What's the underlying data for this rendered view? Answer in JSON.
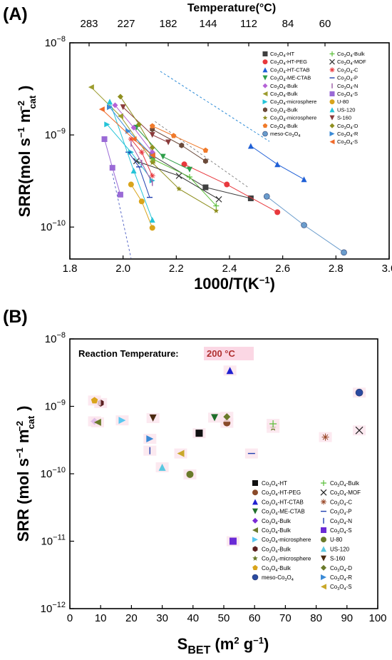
{
  "panelA": {
    "label": "(A)",
    "top_axis_title": "Temperature(°C)",
    "top_ticks": [
      "283",
      "227",
      "182",
      "144",
      "112",
      "84",
      "60"
    ],
    "legend": [
      {
        "label": "Co3O4-HT",
        "color": "#404040",
        "marker": "square"
      },
      {
        "label": "Co3O4-HT-PEG",
        "color": "#e8383d",
        "marker": "circle"
      },
      {
        "label": "Co3O4-HT-CTAB",
        "color": "#1f5fd6",
        "marker": "triangle"
      },
      {
        "label": "Co3O4-ME-CTAB",
        "color": "#2e9e4a",
        "marker": "triangle-down"
      },
      {
        "label": "Co3O4-Bulk",
        "color": "#b562d6",
        "marker": "diamond"
      },
      {
        "label": "Co3O4-Bulk",
        "color": "#9c9c2e",
        "marker": "triangle-left"
      },
      {
        "label": "Co3O4-microsphere",
        "color": "#25c4d8",
        "marker": "triangle-right"
      },
      {
        "label": "Co3O4-Bulk",
        "color": "#6b4a3a",
        "marker": "hexagon"
      },
      {
        "label": "Co3O4-microsphere",
        "color": "#8f8f1f",
        "marker": "star"
      },
      {
        "label": "Co3O4-Bulk",
        "color": "#f07a2a",
        "marker": "pentagon"
      },
      {
        "label": "meso-Co3O4",
        "color": "#6a9ccc",
        "marker": "sphere"
      },
      {
        "label": "Co3O4-Bulk",
        "color": "#5bbf3a",
        "marker": "plus"
      },
      {
        "label": "Co3O4-MOF",
        "color": "#333333",
        "marker": "x"
      },
      {
        "label": "Co3O4-C",
        "color": "#e8383d",
        "marker": "asterisk"
      },
      {
        "label": "Co3O4-P",
        "color": "#1f3fb0",
        "marker": "hline"
      },
      {
        "label": "Co3O4-N",
        "color": "#9a5aa6",
        "marker": "vline"
      },
      {
        "label": "Co3O4-S",
        "color": "#9a6ad6",
        "marker": "square"
      },
      {
        "label": "U-80",
        "color": "#d9a41a",
        "marker": "circle"
      },
      {
        "label": "US-120",
        "color": "#25c4d8",
        "marker": "triangle"
      },
      {
        "label": "S-160",
        "color": "#8a3a3a",
        "marker": "triangle-down"
      },
      {
        "label": "Co3O4-D",
        "color": "#8f8f1f",
        "marker": "diamond"
      },
      {
        "label": "Co3O4-R",
        "color": "#3a8ad6",
        "marker": "triangle-right"
      },
      {
        "label": "Co3O4-S",
        "color": "#f06a2a",
        "marker": "triangle-left"
      }
    ]
  },
  "panelB": {
    "label": "(B)",
    "annotation_prefix": "Reaction Temperature:",
    "annotation_value": "200 °C",
    "legend": [
      {
        "label": "Co3O4-HT",
        "color": "#111111",
        "marker": "square"
      },
      {
        "label": "Co3O4-HT-PEG",
        "color": "#8a4a2a",
        "marker": "circle"
      },
      {
        "label": "Co3O4-HT-CTAB",
        "color": "#2020d0",
        "marker": "triangle"
      },
      {
        "label": "Co3O4-ME-CTAB",
        "color": "#1f6e2a",
        "marker": "triangle-down"
      },
      {
        "label": "Co3O4-Bulk",
        "color": "#7a2ad6",
        "marker": "diamond"
      },
      {
        "label": "Co3O4-Bulk",
        "color": "#6a7a2a",
        "marker": "triangle-left"
      },
      {
        "label": "Co3O4-microsphere",
        "color": "#5ac8f0",
        "marker": "triangle-right"
      },
      {
        "label": "Co3O4-Bulk",
        "color": "#5a1f1f",
        "marker": "hexagon"
      },
      {
        "label": "Co3O4-microsphere",
        "color": "#6a7a2a",
        "marker": "star"
      },
      {
        "label": "Co3O4-Bulk",
        "color": "#d9a41a",
        "marker": "pentagon"
      },
      {
        "label": "meso-Co3O4",
        "color": "#2a4aa0",
        "marker": "sphere"
      },
      {
        "label": "Co3O4-Bulk",
        "color": "#5bbf3a",
        "marker": "plus"
      },
      {
        "label": "Co3O4-MOF",
        "color": "#222222",
        "marker": "x"
      },
      {
        "label": "Co3O4-C",
        "color": "#9a4a2a",
        "marker": "asterisk"
      },
      {
        "label": "Co3O4-P",
        "color": "#1f3fb0",
        "marker": "hline"
      },
      {
        "label": "Co3O4-N",
        "color": "#1f3fb0",
        "marker": "vline"
      },
      {
        "label": "Co3O4-S",
        "color": "#6a2ad6",
        "marker": "square"
      },
      {
        "label": "U-80",
        "color": "#6a7a2a",
        "marker": "circle"
      },
      {
        "label": "US-120",
        "color": "#5ac8e0",
        "marker": "triangle"
      },
      {
        "label": "S-160",
        "color": "#4a2a10",
        "marker": "triangle-down"
      },
      {
        "label": "Co3O4-D",
        "color": "#6a7a2a",
        "marker": "diamond"
      },
      {
        "label": "Co3O4-R",
        "color": "#3a8ad6",
        "marker": "triangle-right"
      },
      {
        "label": "Co3O4-S",
        "color": "#c9a82a",
        "marker": "triangle-left"
      }
    ]
  },
  "chart_data": [
    {
      "type": "scatter",
      "xlabel": "1000/T(K−1)",
      "ylabel": "SRR(mol s−1 m−2cat)",
      "x_ticks": [
        "1.8",
        "2.0",
        "2.2",
        "2.4",
        "2.6",
        "2.8",
        "3.0"
      ],
      "y_ticks": [
        "10−10",
        "10−9",
        "10−8"
      ],
      "xlim": [
        1.8,
        3.0
      ],
      "ylim": [
        4.5e-11,
        1e-08
      ],
      "yscale": "log",
      "series": [
        {
          "name": "Co3O4-HT",
          "x": [
            2.11,
            2.31,
            2.48
          ],
          "y": [
            6e-10,
            2.7e-10,
            2.05e-10
          ]
        },
        {
          "name": "Co3O4-HT-PEG",
          "x": [
            2.23,
            2.39,
            2.58
          ],
          "y": [
            4.8e-10,
            2.9e-10,
            1.45e-10
          ]
        },
        {
          "name": "Co3O4-HT-CTAB",
          "x": [
            2.48,
            2.58,
            2.68
          ],
          "y": [
            7.6e-10,
            4.8e-10,
            3.3e-10
          ]
        },
        {
          "name": "Co3O4-ME-CTAB",
          "x": [
            2.05,
            2.15,
            2.25
          ],
          "y": [
            1.2e-09,
            5.8e-10,
            4.2e-10
          ]
        },
        {
          "name": "Co3O4-Bulk",
          "x": [
            1.97,
            2.04,
            2.11
          ],
          "y": [
            2.1e-09,
            1.2e-09,
            6.5e-10
          ]
        },
        {
          "name": "Co3O4-Bulk",
          "x": [
            1.88,
            1.99,
            2.11
          ],
          "y": [
            3.3e-09,
            1.6e-09,
            5.2e-10
          ]
        },
        {
          "name": "Co3O4-microsphere",
          "x": [
            1.94,
            2.03,
            2.11
          ],
          "y": [
            1.3e-09,
            6.5e-10,
            3.2e-10
          ]
        },
        {
          "name": "Co3O4-Bulk",
          "x": [
            2.11,
            2.22,
            2.31
          ],
          "y": [
            1.15e-09,
            7.7e-10,
            5.2e-10
          ]
        },
        {
          "name": "Co3O4-microsphere",
          "x": [
            2.11,
            2.21,
            2.35
          ],
          "y": [
            5e-10,
            2.6e-10,
            1.5e-10
          ]
        },
        {
          "name": "Co3O4-Bulk",
          "x": [
            2.11,
            2.19,
            2.31
          ],
          "y": [
            1.25e-09,
            9.8e-10,
            6.8e-10
          ]
        },
        {
          "name": "meso-Co3O4",
          "x": [
            2.54,
            2.68,
            2.83
          ],
          "y": [
            2.15e-10,
            1.05e-10,
            5.3e-11
          ]
        },
        {
          "name": "Co3O4-Bulk",
          "x": [
            2.11,
            2.25,
            2.35
          ],
          "y": [
            5.5e-10,
            3.5e-10,
            1.7e-10
          ]
        },
        {
          "name": "Co3O4-MOF",
          "x": [
            2.05,
            2.21,
            2.36
          ],
          "y": [
            5.2e-10,
            3.6e-10,
            2e-10
          ]
        },
        {
          "name": "Co3O4-C",
          "x": [
            2.03,
            2.07,
            2.11
          ],
          "y": [
            9e-10,
            6.5e-10,
            3.6e-10
          ]
        },
        {
          "name": "Co3O4-P",
          "x": [
            2.02,
            2.06,
            2.1
          ],
          "y": [
            6.5e-10,
            4.5e-10,
            2.1e-10
          ]
        },
        {
          "name": "Co3O4-N",
          "x": [
            2.03,
            2.07,
            2.11
          ],
          "y": [
            8e-10,
            5e-10,
            3e-10
          ]
        },
        {
          "name": "Co3O4-S",
          "x": [
            1.93,
            1.96,
            1.99
          ],
          "y": [
            9e-10,
            4.4e-10,
            2.25e-10
          ]
        },
        {
          "name": "U-80",
          "x": [
            2.03,
            2.07,
            2.11
          ],
          "y": [
            2.9e-10,
            1.9e-10,
            9.8e-11
          ]
        },
        {
          "name": "US-120",
          "x": [
            1.95,
            2.04,
            2.11
          ],
          "y": [
            2.3e-09,
            4.1e-10,
            1.2e-10
          ]
        },
        {
          "name": "S-160",
          "x": [
            2.0,
            2.11,
            2.17
          ],
          "y": [
            2e-09,
            1e-09,
            8.3e-10
          ]
        },
        {
          "name": "Co3O4-D",
          "x": [
            1.99,
            2.06,
            2.11
          ],
          "y": [
            2.6e-09,
            1.3e-09,
            7.3e-10
          ]
        },
        {
          "name": "Co3O4-R",
          "x": [
            1.95,
            2.02,
            2.11
          ],
          "y": [
            2e-09,
            1.1e-09,
            6e-10
          ]
        },
        {
          "name": "Co3O4-S",
          "x": [
            1.92,
            2.04,
            2.11
          ],
          "y": [
            1.9e-09,
            9e-10,
            6e-10
          ]
        }
      ]
    },
    {
      "type": "scatter",
      "xlabel": "SBET (m2 g−1)",
      "ylabel": "SRR (mol s−1 m−2cat)",
      "x_ticks": [
        "0",
        "10",
        "20",
        "30",
        "40",
        "50",
        "60",
        "70",
        "80",
        "90",
        "100"
      ],
      "y_ticks": [
        "10−12",
        "10−11",
        "10−10",
        "10−9",
        "10−8"
      ],
      "xlim": [
        0,
        100
      ],
      "ylim": [
        1e-12,
        1e-08
      ],
      "yscale": "log",
      "series": [
        {
          "name": "Co3O4-HT",
          "x": [
            42
          ],
          "y": [
            4e-10
          ]
        },
        {
          "name": "Co3O4-HT-PEG",
          "x": [
            51
          ],
          "y": [
            5.7e-10
          ]
        },
        {
          "name": "Co3O4-HT-CTAB",
          "x": [
            52
          ],
          "y": [
            3.4e-09
          ]
        },
        {
          "name": "Co3O4-ME-CTAB",
          "x": [
            47
          ],
          "y": [
            6.8e-10
          ]
        },
        {
          "name": "Co3O4-Bulk",
          "x": [
            8
          ],
          "y": [
            6e-10
          ]
        },
        {
          "name": "Co3O4-Bulk",
          "x": [
            9
          ],
          "y": [
            5.8e-10
          ]
        },
        {
          "name": "Co3O4-microsphere",
          "x": [
            17
          ],
          "y": [
            6.2e-10
          ]
        },
        {
          "name": "Co3O4-Bulk",
          "x": [
            10
          ],
          "y": [
            1.12e-09
          ]
        },
        {
          "name": "Co3O4-microsphere",
          "x": [
            66
          ],
          "y": [
            4.8e-10
          ]
        },
        {
          "name": "Co3O4-Bulk",
          "x": [
            8
          ],
          "y": [
            1.22e-09
          ]
        },
        {
          "name": "meso-Co3O4",
          "x": [
            94
          ],
          "y": [
            1.6e-09
          ]
        },
        {
          "name": "Co3O4-Bulk",
          "x": [
            66
          ],
          "y": [
            5.5e-10
          ]
        },
        {
          "name": "Co3O4-MOF",
          "x": [
            94
          ],
          "y": [
            4.4e-10
          ]
        },
        {
          "name": "Co3O4-C",
          "x": [
            83
          ],
          "y": [
            3.5e-10
          ]
        },
        {
          "name": "Co3O4-P",
          "x": [
            59
          ],
          "y": [
            2e-10
          ]
        },
        {
          "name": "Co3O4-N",
          "x": [
            26
          ],
          "y": [
            2.2e-10
          ]
        },
        {
          "name": "Co3O4-S",
          "x": [
            53
          ],
          "y": [
            1e-11
          ]
        },
        {
          "name": "U-80",
          "x": [
            39
          ],
          "y": [
            9.8e-11
          ]
        },
        {
          "name": "US-120",
          "x": [
            30
          ],
          "y": [
            1.25e-10
          ]
        },
        {
          "name": "S-160",
          "x": [
            27
          ],
          "y": [
            6.7e-10
          ]
        },
        {
          "name": "Co3O4-D",
          "x": [
            51
          ],
          "y": [
            7e-10
          ]
        },
        {
          "name": "Co3O4-R",
          "x": [
            26
          ],
          "y": [
            3.3e-10
          ]
        },
        {
          "name": "Co3O4-S",
          "x": [
            36
          ],
          "y": [
            2e-10
          ]
        }
      ]
    }
  ]
}
